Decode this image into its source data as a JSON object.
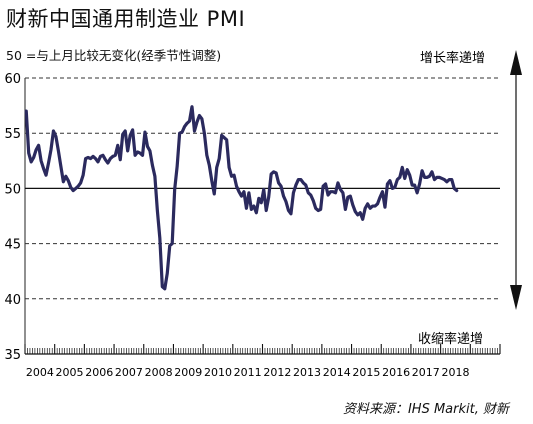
{
  "title": "财新中国通用制造业 PMI",
  "subtitle": "50 =与上月比较无变化(经季节性调整)",
  "source": "资料来源：IHS Markit, 财新",
  "annotations": {
    "increase": "增长率递增",
    "decrease": "收缩率递增"
  },
  "colors": {
    "line": "#2b2a5e",
    "grid": "#333333",
    "arrow": "#111111"
  },
  "chart_data": {
    "type": "line",
    "x_labels": [
      "2004",
      "2005",
      "2006",
      "2007",
      "2008",
      "2009",
      "2010",
      "2011",
      "2012",
      "2013",
      "2014",
      "2015",
      "2016",
      "2017",
      "2018"
    ],
    "ylim": [
      35,
      60
    ],
    "y_ticks": [
      35,
      40,
      45,
      50,
      55,
      60
    ],
    "reference_line": 50,
    "grid": "dashed at 40, 45, 55, 60",
    "x_start_year": 2004,
    "months_per_point": 1,
    "values": [
      57.0,
      53.2,
      52.4,
      52.8,
      53.5,
      53.9,
      52.5,
      51.8,
      51.2,
      52.3,
      53.5,
      55.2,
      54.7,
      53.4,
      52.0,
      50.6,
      51.1,
      50.7,
      50.1,
      49.8,
      50.0,
      50.2,
      50.5,
      51.2,
      52.7,
      52.8,
      52.7,
      52.9,
      52.7,
      52.4,
      52.9,
      53.0,
      52.6,
      52.3,
      52.7,
      52.9,
      53.0,
      53.9,
      52.6,
      54.9,
      55.2,
      53.4,
      54.8,
      55.3,
      53.0,
      53.3,
      53.2,
      53.0,
      55.1,
      53.8,
      53.4,
      52.1,
      51.1,
      48.0,
      45.5,
      41.1,
      40.9,
      42.3,
      44.8,
      45.0,
      49.9,
      52.0,
      55.0,
      55.1,
      55.6,
      55.9,
      56.1,
      57.4,
      55.2,
      56.0,
      56.6,
      56.3,
      55.0,
      53.0,
      52.1,
      50.7,
      49.5,
      51.9,
      52.7,
      54.8,
      54.6,
      54.4,
      51.9,
      51.1,
      51.2,
      50.2,
      49.7,
      49.3,
      49.7,
      48.2,
      49.6,
      48.1,
      48.4,
      47.8,
      49.1,
      48.7,
      49.9,
      48.0,
      49.2,
      51.3,
      51.5,
      51.4,
      50.5,
      50.2,
      49.3,
      48.8,
      48.0,
      47.7,
      49.6,
      50.3,
      50.8,
      50.8,
      50.5,
      50.3,
      49.6,
      49.4,
      48.9,
      48.2,
      48.0,
      48.1,
      50.2,
      50.4,
      49.4,
      49.7,
      49.7,
      49.6,
      50.5,
      49.9,
      49.6,
      48.1,
      49.2,
      49.3,
      48.5,
      47.9,
      47.6,
      47.8,
      47.2,
      48.2,
      48.6,
      48.2,
      48.4,
      48.4,
      48.6,
      49.2,
      49.7,
      48.3,
      50.4,
      50.7,
      50.0,
      50.1,
      50.8,
      51.0,
      51.9,
      50.9,
      51.7,
      51.2,
      50.3,
      50.3,
      49.6,
      50.4,
      51.6,
      51.0,
      51.0,
      51.1,
      51.5,
      50.8,
      51.0,
      51.0,
      50.9,
      50.8,
      50.6,
      50.8,
      50.8,
      50.0,
      49.8
    ]
  }
}
